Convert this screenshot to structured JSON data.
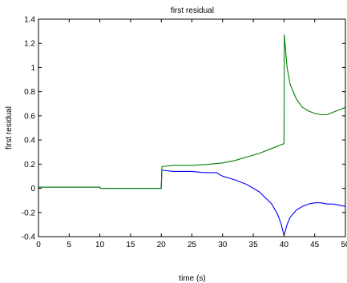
{
  "chart_data": {
    "type": "line",
    "title": "first residual",
    "xlabel": "time (s)",
    "ylabel": "first residual",
    "xlim": [
      0,
      50
    ],
    "ylim": [
      -0.4,
      1.4
    ],
    "grid": false,
    "x_ticks": [
      0,
      5,
      10,
      15,
      20,
      25,
      30,
      35,
      40,
      45,
      50
    ],
    "y_ticks": [
      -0.4,
      -0.2,
      0,
      0.2,
      0.4,
      0.6,
      0.8,
      1,
      1.2,
      1.4
    ],
    "x_tick_labels": [
      "0",
      "5",
      "10",
      "15",
      "20",
      "25",
      "30",
      "35",
      "40",
      "45",
      "50"
    ],
    "y_tick_labels": [
      "-0.4",
      "-0.2",
      "0",
      "0.2",
      "0.4",
      "0.6",
      "0.8",
      "1",
      "1.2",
      "1.4"
    ],
    "series": [
      {
        "color": "#0000ff",
        "x": [
          0,
          2,
          4,
          6,
          8,
          10,
          10.1,
          15,
          20,
          20.1,
          22,
          25,
          27,
          29,
          30,
          32,
          34,
          36,
          38,
          39,
          39.5,
          40,
          40.5,
          41,
          42,
          43,
          44,
          45,
          46,
          47,
          48,
          50
        ],
        "y": [
          0.01,
          0.01,
          0.01,
          0.01,
          0.01,
          0.01,
          0.0,
          0.0,
          0.0,
          0.15,
          0.14,
          0.14,
          0.13,
          0.13,
          0.1,
          0.07,
          0.03,
          -0.03,
          -0.13,
          -0.22,
          -0.29,
          -0.39,
          -0.3,
          -0.24,
          -0.18,
          -0.15,
          -0.13,
          -0.12,
          -0.12,
          -0.13,
          -0.13,
          -0.15
        ]
      },
      {
        "color": "#008000",
        "x": [
          0,
          2,
          4,
          6,
          8,
          10,
          10.1,
          15,
          20,
          20.1,
          22,
          25,
          28,
          30,
          32,
          34,
          36,
          38,
          40,
          40.05,
          40.5,
          41,
          42,
          43,
          44,
          45,
          46,
          47,
          48,
          49,
          50
        ],
        "y": [
          0.01,
          0.01,
          0.01,
          0.01,
          0.01,
          0.01,
          0.0,
          0.0,
          0.0,
          0.18,
          0.19,
          0.19,
          0.2,
          0.21,
          0.23,
          0.26,
          0.29,
          0.33,
          0.37,
          1.27,
          1.0,
          0.86,
          0.74,
          0.67,
          0.64,
          0.62,
          0.61,
          0.61,
          0.63,
          0.65,
          0.67
        ]
      }
    ]
  }
}
